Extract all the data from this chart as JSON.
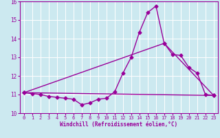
{
  "xlabel": "Windchill (Refroidissement éolien,°C)",
  "xlim": [
    -0.5,
    23.5
  ],
  "ylim": [
    10,
    16
  ],
  "xticks": [
    0,
    1,
    2,
    3,
    4,
    5,
    6,
    7,
    8,
    9,
    10,
    11,
    12,
    13,
    14,
    15,
    16,
    17,
    18,
    19,
    20,
    21,
    22,
    23
  ],
  "yticks": [
    10,
    11,
    12,
    13,
    14,
    15,
    16
  ],
  "bg_color": "#cce9f0",
  "grid_color": "#ffffff",
  "line_color": "#990099",
  "line1_x": [
    0,
    1,
    2,
    3,
    4,
    5,
    6,
    7,
    8,
    9,
    10,
    11,
    12,
    13,
    14,
    15,
    16,
    17,
    18,
    19,
    20,
    21,
    22,
    23
  ],
  "line1_y": [
    11.1,
    11.05,
    11.0,
    10.9,
    10.85,
    10.8,
    10.75,
    10.45,
    10.55,
    10.75,
    10.8,
    11.15,
    12.15,
    13.0,
    14.35,
    15.4,
    15.75,
    13.75,
    13.15,
    13.1,
    12.45,
    12.15,
    11.0,
    10.95
  ],
  "line2_x": [
    0,
    23
  ],
  "line2_y": [
    11.1,
    10.95
  ],
  "line3_x": [
    0,
    17,
    23
  ],
  "line3_y": [
    11.1,
    13.75,
    10.95
  ],
  "marker": "D",
  "markersize": 2.5,
  "linewidth": 1.0
}
